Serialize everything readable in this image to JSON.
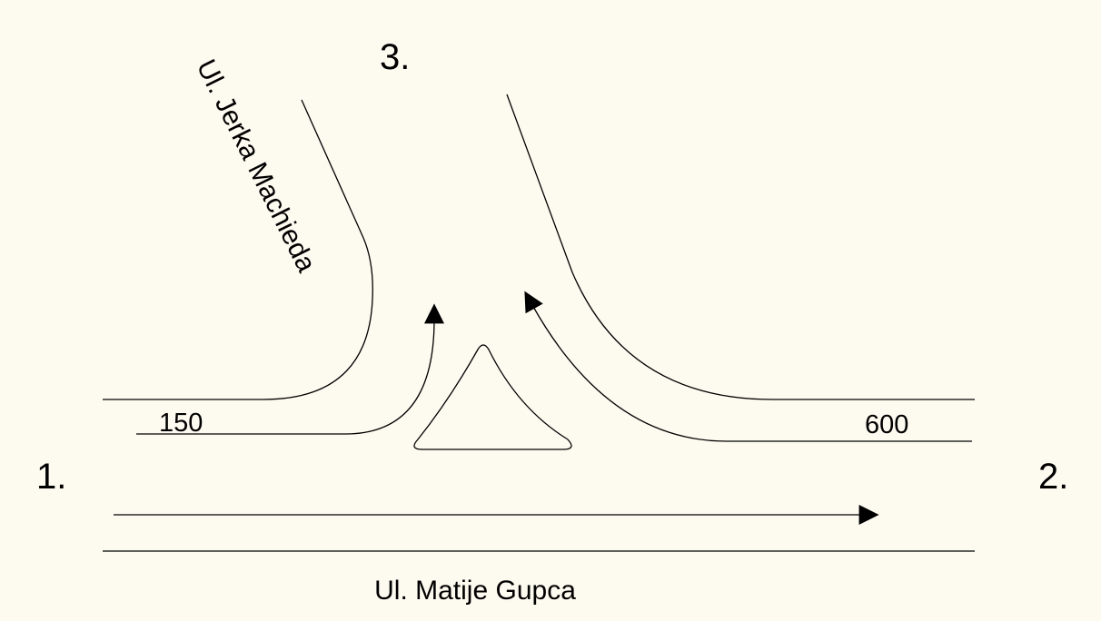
{
  "nodes": [
    {
      "label": "1."
    },
    {
      "label": "2."
    },
    {
      "label": "3."
    }
  ],
  "streets": [
    {
      "name": "Ul. Jerka Machieda"
    },
    {
      "name": "Ul. Matije Gupca"
    }
  ],
  "flows": [
    {
      "label": "150"
    },
    {
      "label": "600"
    }
  ]
}
